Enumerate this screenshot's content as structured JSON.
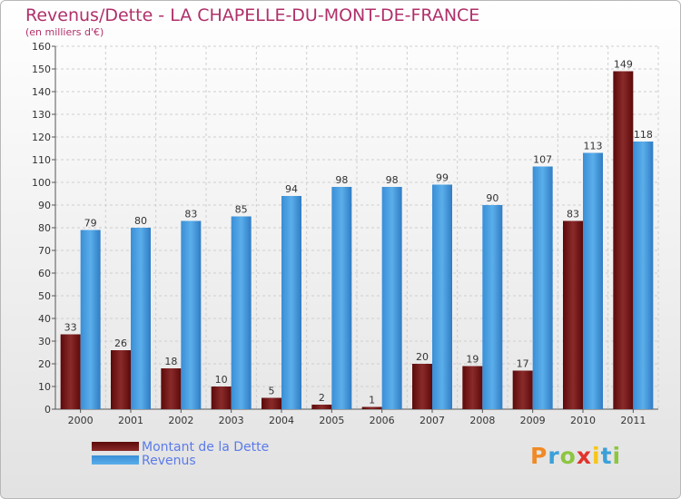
{
  "header": {
    "title": "Revenus/Dette - LA CHAPELLE-DU-MONT-DE-FRANCE",
    "subtitle": "(en milliers d'€)"
  },
  "chart_data": {
    "type": "bar",
    "categories": [
      "2000",
      "2001",
      "2002",
      "2003",
      "2004",
      "2005",
      "2006",
      "2007",
      "2008",
      "2009",
      "2010",
      "2011"
    ],
    "series": [
      {
        "name": "Montant de la Dette",
        "values": [
          33,
          26,
          18,
          10,
          5,
          2,
          1,
          20,
          19,
          17,
          83,
          149
        ],
        "color": "#7a1a1a"
      },
      {
        "name": "Revenus",
        "values": [
          79,
          80,
          83,
          85,
          94,
          98,
          98,
          99,
          90,
          107,
          113,
          118
        ],
        "color": "#4a9ee2"
      }
    ],
    "ylim": [
      0,
      160
    ],
    "yticks": [
      0,
      10,
      20,
      30,
      40,
      50,
      60,
      70,
      80,
      90,
      100,
      110,
      120,
      130,
      140,
      150,
      160
    ],
    "grid": true,
    "legend_position": "bottom-left"
  },
  "logo": {
    "letters": [
      "P",
      "r",
      "o",
      "x",
      "i",
      "t",
      "i"
    ],
    "colors": [
      "#f08a24",
      "#3aa0d8",
      "#8cc63f",
      "#e2332b",
      "#f5c518",
      "#3aa0d8",
      "#8cc63f"
    ]
  }
}
